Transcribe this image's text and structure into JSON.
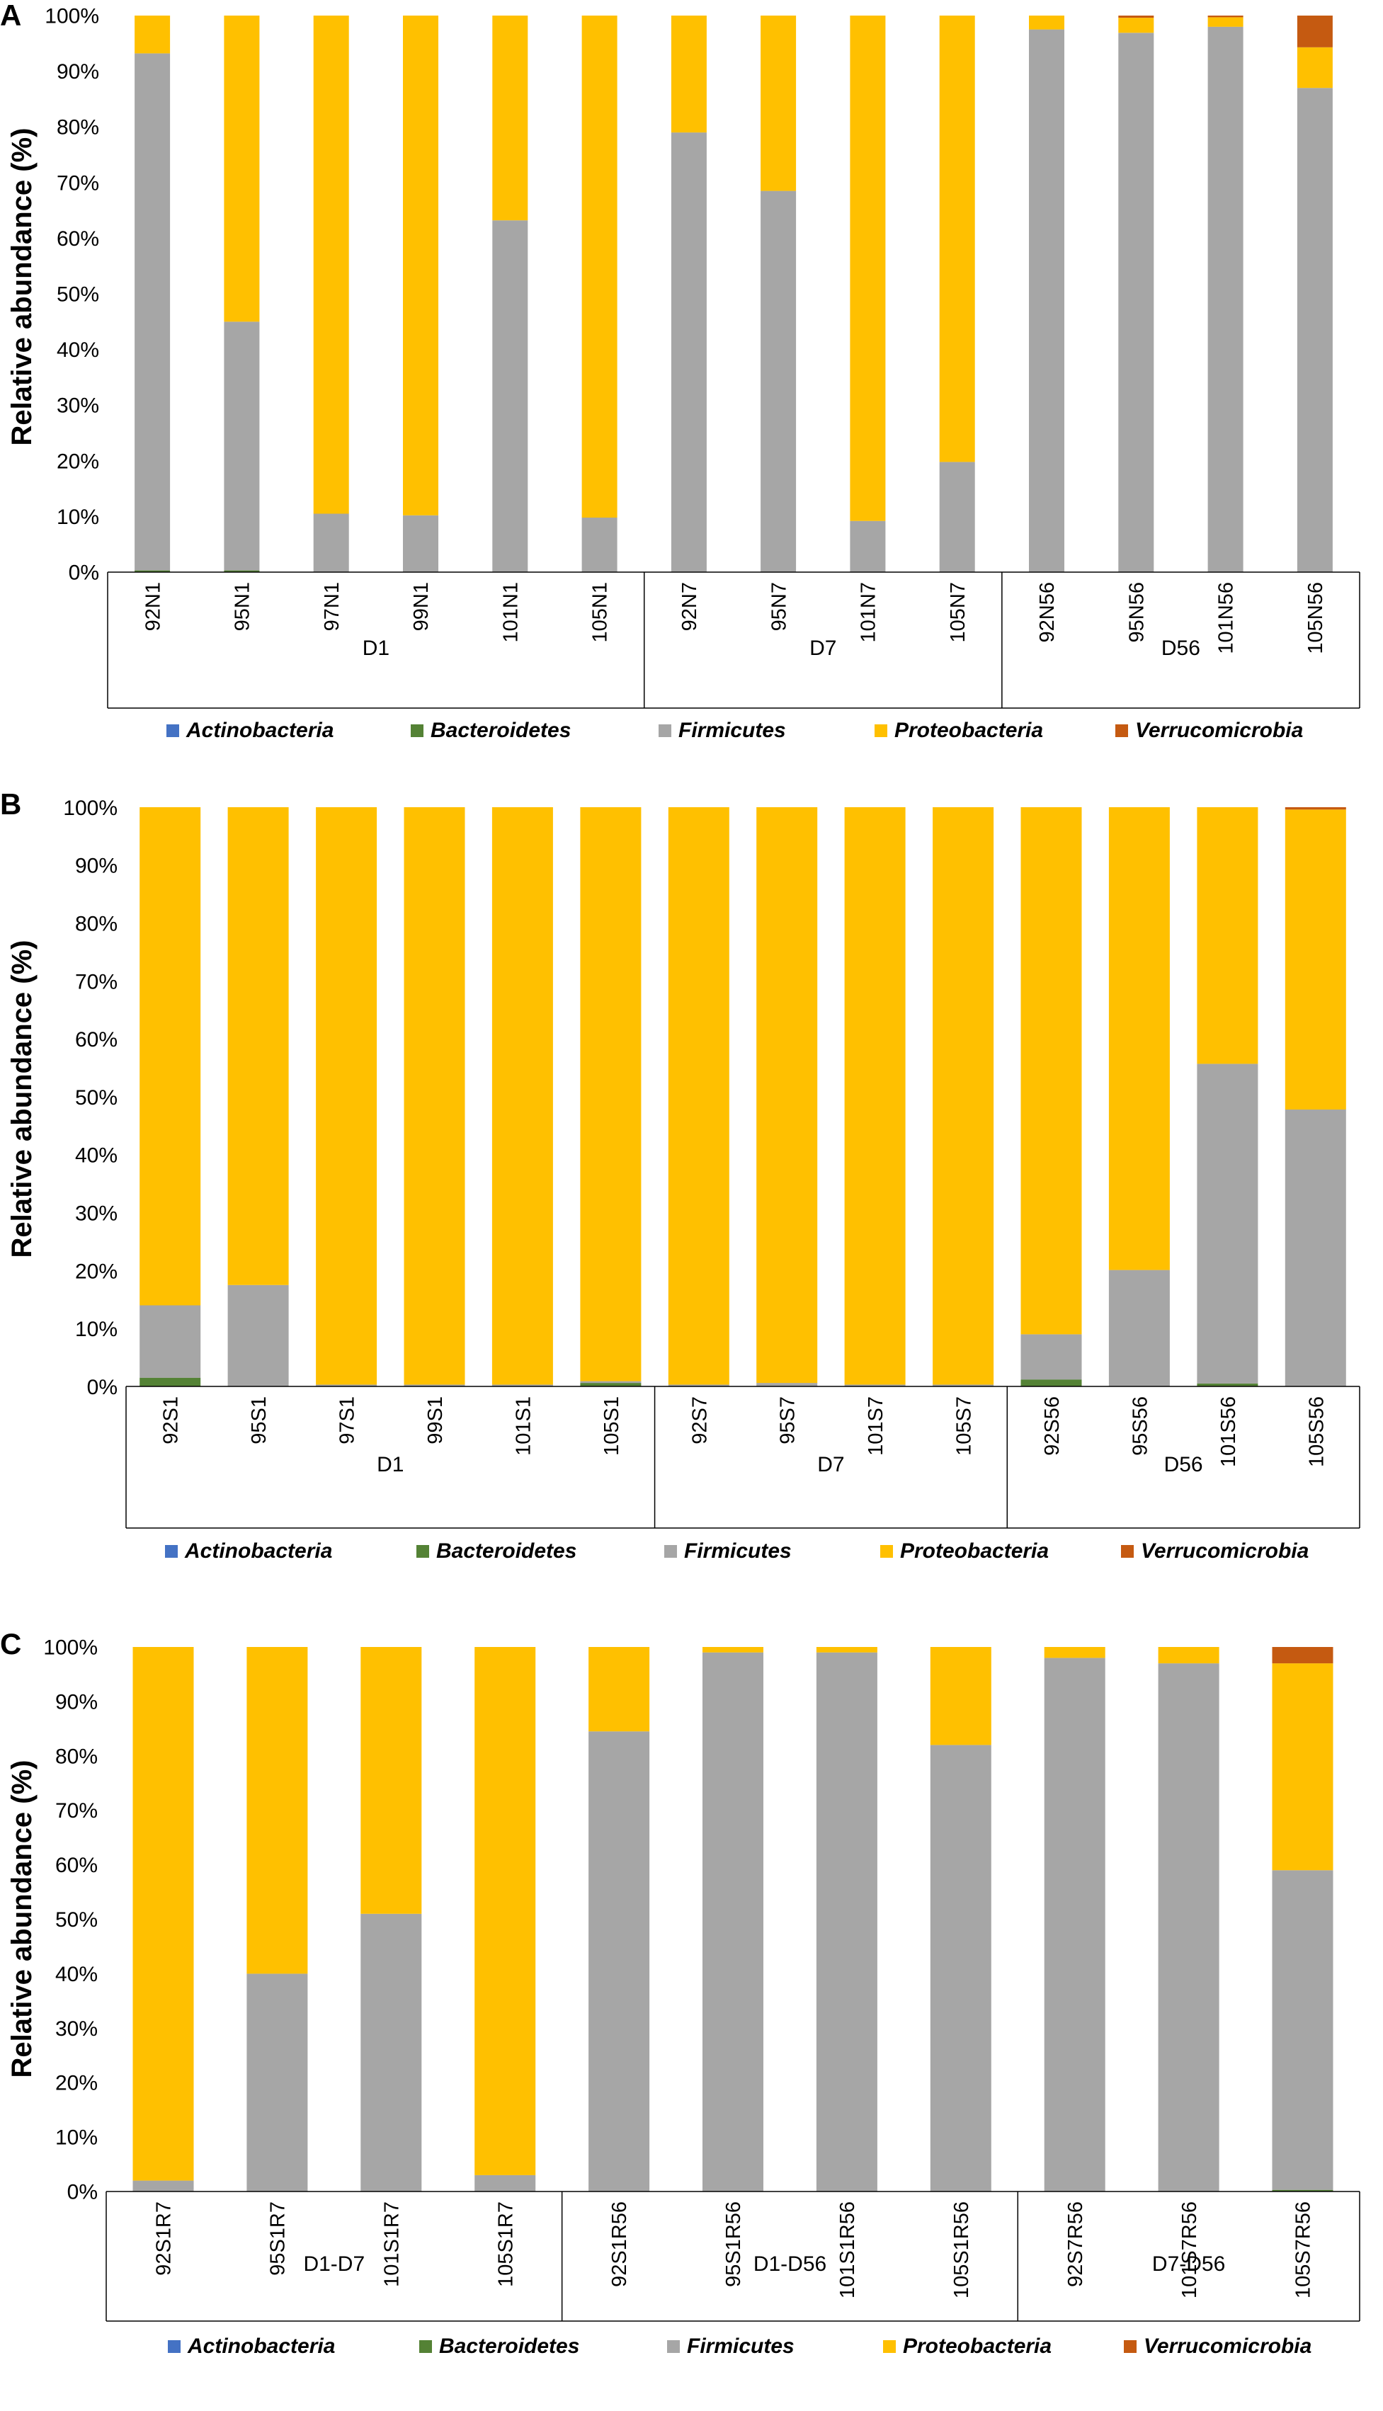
{
  "colors": {
    "Actinobacteria": "#4472c4",
    "Bacteroidetes": "#548235",
    "Firmicutes": "#a6a6a6",
    "Proteobacteria": "#ffc000",
    "Verrucomicrobia": "#c55a11"
  },
  "chart_data": [
    {
      "type": "bar",
      "stacked": true,
      "panel": "A",
      "ylabel": "Relative abundance (%)",
      "yticks": [
        "0%",
        "10%",
        "20%",
        "30%",
        "40%",
        "50%",
        "60%",
        "70%",
        "80%",
        "90%",
        "100%"
      ],
      "ylim": [
        0,
        100
      ],
      "categories": [
        "92N1",
        "95N1",
        "97N1",
        "99N1",
        "101N1",
        "105N1",
        "92N7",
        "95N7",
        "101N7",
        "105N7",
        "92N56",
        "95N56",
        "101N56",
        "105N56"
      ],
      "groups": [
        {
          "label": "D1",
          "count": 6
        },
        {
          "label": "D7",
          "count": 4
        },
        {
          "label": "D56",
          "count": 4
        }
      ],
      "series": [
        {
          "name": "Actinobacteria",
          "values": [
            0,
            0,
            0,
            0,
            0,
            0,
            0,
            0,
            0,
            0,
            0,
            0,
            0,
            0
          ]
        },
        {
          "name": "Bacteroidetes",
          "values": [
            0.3,
            0.3,
            0,
            0,
            0,
            0,
            0,
            0,
            0,
            0,
            0,
            0,
            0,
            0
          ]
        },
        {
          "name": "Firmicutes",
          "values": [
            92.9,
            44.7,
            10.5,
            10.2,
            63.2,
            9.8,
            79.0,
            68.5,
            9.2,
            19.8,
            97.5,
            96.9,
            98.0,
            87.0
          ]
        },
        {
          "name": "Proteobacteria",
          "values": [
            6.8,
            55.0,
            89.5,
            89.8,
            36.8,
            90.2,
            21.0,
            31.5,
            90.8,
            80.2,
            2.5,
            2.7,
            1.7,
            7.3
          ]
        },
        {
          "name": "Verrucomicrobia",
          "values": [
            0,
            0,
            0,
            0,
            0,
            0,
            0,
            0,
            0,
            0,
            0,
            0.4,
            0.3,
            5.7
          ]
        }
      ],
      "legend": [
        "Actinobacteria",
        "Bacteroidetes",
        "Firmicutes",
        "Proteobacteria",
        "Verrucomicrobia"
      ]
    },
    {
      "type": "bar",
      "stacked": true,
      "panel": "B",
      "ylabel": "Relative abundance (%)",
      "yticks": [
        "0%",
        "10%",
        "20%",
        "30%",
        "40%",
        "50%",
        "60%",
        "70%",
        "80%",
        "90%",
        "100%"
      ],
      "ylim": [
        0,
        100
      ],
      "categories": [
        "92S1",
        "95S1",
        "97S1",
        "99S1",
        "101S1",
        "105S1",
        "92S7",
        "95S7",
        "101S7",
        "105S7",
        "92S56",
        "95S56",
        "101S56",
        "105S56"
      ],
      "groups": [
        {
          "label": "D1",
          "count": 6
        },
        {
          "label": "D7",
          "count": 4
        },
        {
          "label": "D56",
          "count": 4
        }
      ],
      "series": [
        {
          "name": "Actinobacteria",
          "values": [
            0,
            0,
            0,
            0,
            0,
            0,
            0,
            0,
            0,
            0,
            0,
            0,
            0,
            0
          ]
        },
        {
          "name": "Bacteroidetes",
          "values": [
            1.5,
            0,
            0,
            0,
            0,
            0.6,
            0,
            0,
            0,
            0,
            1.2,
            0,
            0.5,
            0
          ]
        },
        {
          "name": "Firmicutes",
          "values": [
            12.5,
            17.5,
            0.3,
            0.3,
            0.3,
            0.3,
            0.3,
            0.6,
            0.3,
            0.3,
            7.8,
            20.1,
            55.2,
            47.8
          ]
        },
        {
          "name": "Proteobacteria",
          "values": [
            86.0,
            82.5,
            99.7,
            99.7,
            99.7,
            99.1,
            99.7,
            99.4,
            99.7,
            99.7,
            91.0,
            79.9,
            44.3,
            51.8
          ]
        },
        {
          "name": "Verrucomicrobia",
          "values": [
            0,
            0,
            0,
            0,
            0,
            0,
            0,
            0,
            0,
            0,
            0,
            0,
            0,
            0.4
          ]
        }
      ],
      "legend": [
        "Actinobacteria",
        "Bacteroidetes",
        "Firmicutes",
        "Proteobacteria",
        "Verrucomicrobia"
      ]
    },
    {
      "type": "bar",
      "stacked": true,
      "panel": "C",
      "ylabel": "Relative abundance (%)",
      "yticks": [
        "0%",
        "10%",
        "20%",
        "30%",
        "40%",
        "50%",
        "60%",
        "70%",
        "80%",
        "90%",
        "100%"
      ],
      "ylim": [
        0,
        100
      ],
      "categories": [
        "92S1R7",
        "95S1R7",
        "101S1R7",
        "105S1R7",
        "92S1R56",
        "95S1R56",
        "101S1R56",
        "105S1R56",
        "92S7R56",
        "101S7R56",
        "105S7R56"
      ],
      "groups": [
        {
          "label": "D1-D7",
          "count": 4
        },
        {
          "label": "D1-D56",
          "count": 4
        },
        {
          "label": "D7-D56",
          "count": 3
        }
      ],
      "series": [
        {
          "name": "Actinobacteria",
          "values": [
            0,
            0,
            0,
            0,
            0,
            0,
            0,
            0,
            0,
            0,
            0
          ]
        },
        {
          "name": "Bacteroidetes",
          "values": [
            0,
            0,
            0,
            0,
            0,
            0,
            0,
            0,
            0,
            0,
            0.3
          ]
        },
        {
          "name": "Firmicutes",
          "values": [
            2.0,
            40.0,
            51.0,
            3.0,
            84.5,
            99.0,
            99.0,
            82.0,
            98.0,
            97.0,
            58.7
          ]
        },
        {
          "name": "Proteobacteria",
          "values": [
            98.0,
            60.0,
            49.0,
            97.0,
            15.5,
            1.0,
            1.0,
            18.0,
            2.0,
            3.0,
            38.0
          ]
        },
        {
          "name": "Verrucomicrobia",
          "values": [
            0,
            0,
            0,
            0,
            0,
            0,
            0,
            0,
            0,
            0,
            3.0
          ]
        }
      ],
      "legend": [
        "Actinobacteria",
        "Bacteroidetes",
        "Firmicutes",
        "Proteobacteria",
        "Verrucomicrobia"
      ]
    }
  ]
}
